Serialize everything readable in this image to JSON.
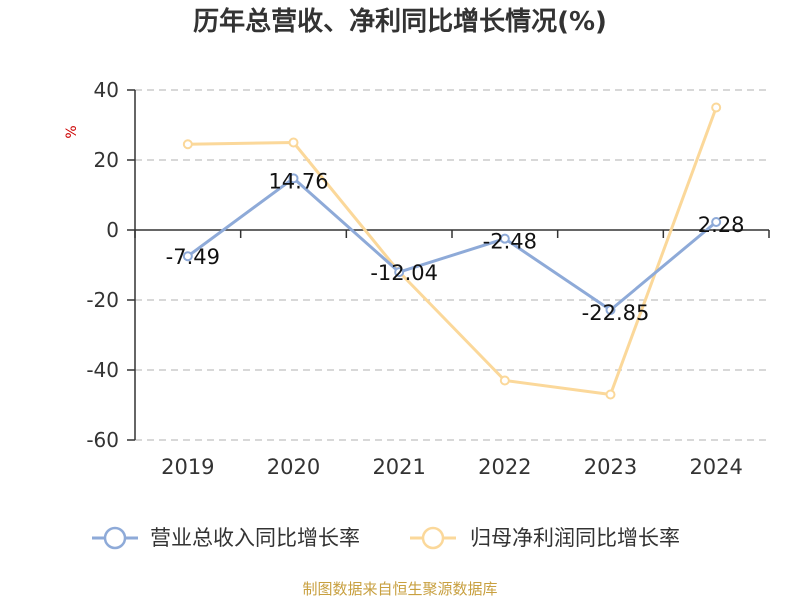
{
  "chart_data": {
    "type": "line",
    "title": "历年总营收、净利同比增长情况(%)",
    "ylabel": "%",
    "categories": [
      "2019",
      "2020",
      "2021",
      "2022",
      "2023",
      "2024"
    ],
    "ylim": [
      -60,
      40
    ],
    "yticks": [
      40,
      20,
      0,
      -20,
      -40,
      -60
    ],
    "grid": true,
    "legend_position": "bottom",
    "series": [
      {
        "name": "营业总收入同比增长率",
        "values": [
          -7.49,
          14.76,
          -12.04,
          -2.48,
          -22.85,
          2.28
        ],
        "labels": [
          "-7.49",
          "14.76",
          "-12.04",
          "-2.48",
          "-22.85",
          "2.28"
        ],
        "color": "#8eaad8"
      },
      {
        "name": "归母净利润同比增长率",
        "values": [
          24.5,
          25.0,
          -12.0,
          -43.0,
          -47.0,
          35.0
        ],
        "color": "#fbd89a"
      }
    ],
    "colors": {
      "axis": "#333333",
      "grid": "#cccccc",
      "unit": "#cc0000"
    }
  },
  "footer": {
    "source": "制图数据来自恒生聚源数据库",
    "color": "#c8a040"
  }
}
